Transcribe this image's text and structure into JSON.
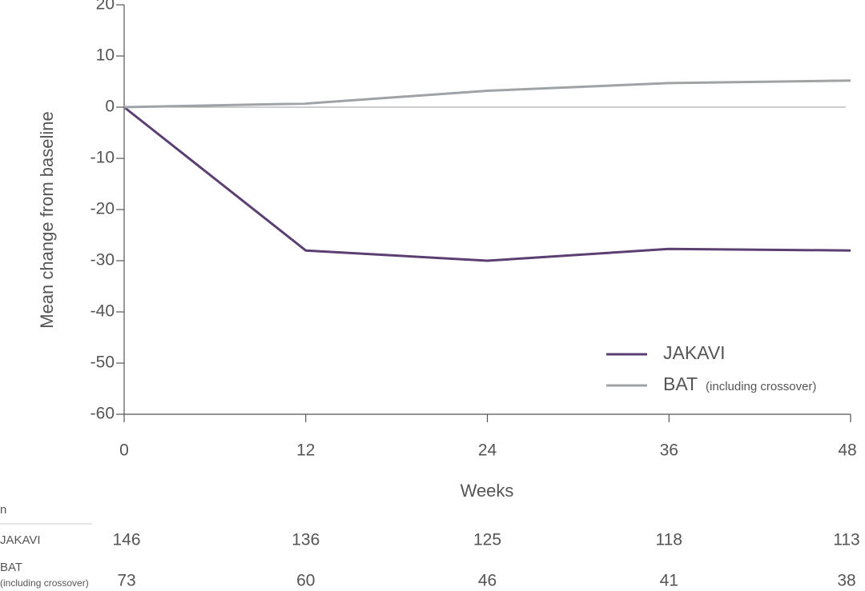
{
  "chart_data": {
    "type": "line",
    "x_label": "Weeks",
    "y_label": "Mean change from baseline",
    "x": [
      0,
      12,
      24,
      36,
      48
    ],
    "xlim": [
      0,
      48
    ],
    "xticks": [
      0,
      12,
      24,
      36,
      48
    ],
    "ylim": [
      -60,
      20
    ],
    "yticks": [
      -60,
      -50,
      -40,
      -30,
      -20,
      -10,
      0,
      10,
      20
    ],
    "zero_line": true,
    "series": [
      {
        "name": "JAKAVI",
        "color": "#5b3f72",
        "values": [
          0,
          -28,
          -30,
          -27.7,
          -28
        ]
      },
      {
        "name": "BAT",
        "name_note": "(including crossover)",
        "color": "#9fa3a6",
        "values": [
          0,
          0.7,
          3.2,
          4.7,
          5.2
        ]
      }
    ]
  },
  "n_table": {
    "header": "n",
    "rows": [
      {
        "label": "JAKAVI",
        "color": "#5b3f72",
        "values": [
          "146",
          "136",
          "125",
          "118",
          "113"
        ]
      },
      {
        "label": "BAT",
        "label_note": "(including crossover)",
        "color": "#a4a7aa",
        "values": [
          "73",
          "60",
          "46",
          "41",
          "38"
        ]
      }
    ]
  }
}
